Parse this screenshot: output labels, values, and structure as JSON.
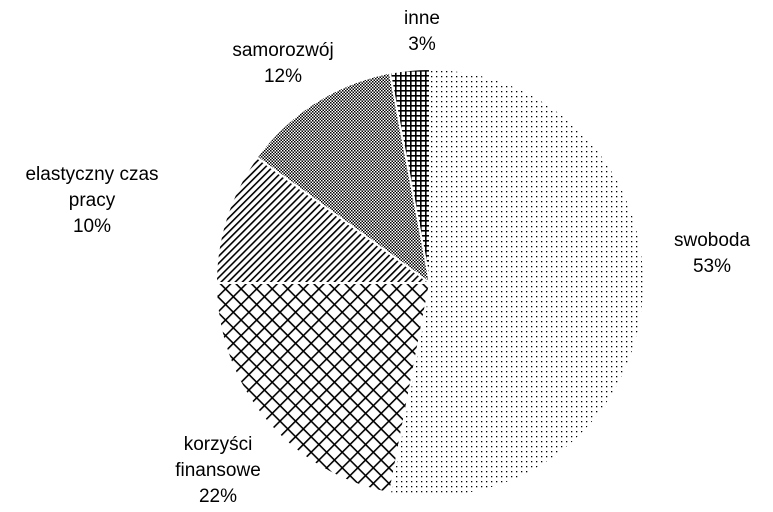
{
  "chart_data": {
    "type": "pie",
    "categories": [
      "swoboda",
      "korzyści finansowe",
      "elastyczny czas pracy",
      "samorozwój",
      "inne"
    ],
    "values": [
      53,
      22,
      10,
      12,
      3
    ],
    "value_labels": [
      "53%",
      "22%",
      "10%",
      "12%",
      "3%"
    ],
    "patterns": [
      "dots",
      "crosshatch",
      "stripes",
      "checker",
      "grid"
    ],
    "color": "#000000"
  }
}
